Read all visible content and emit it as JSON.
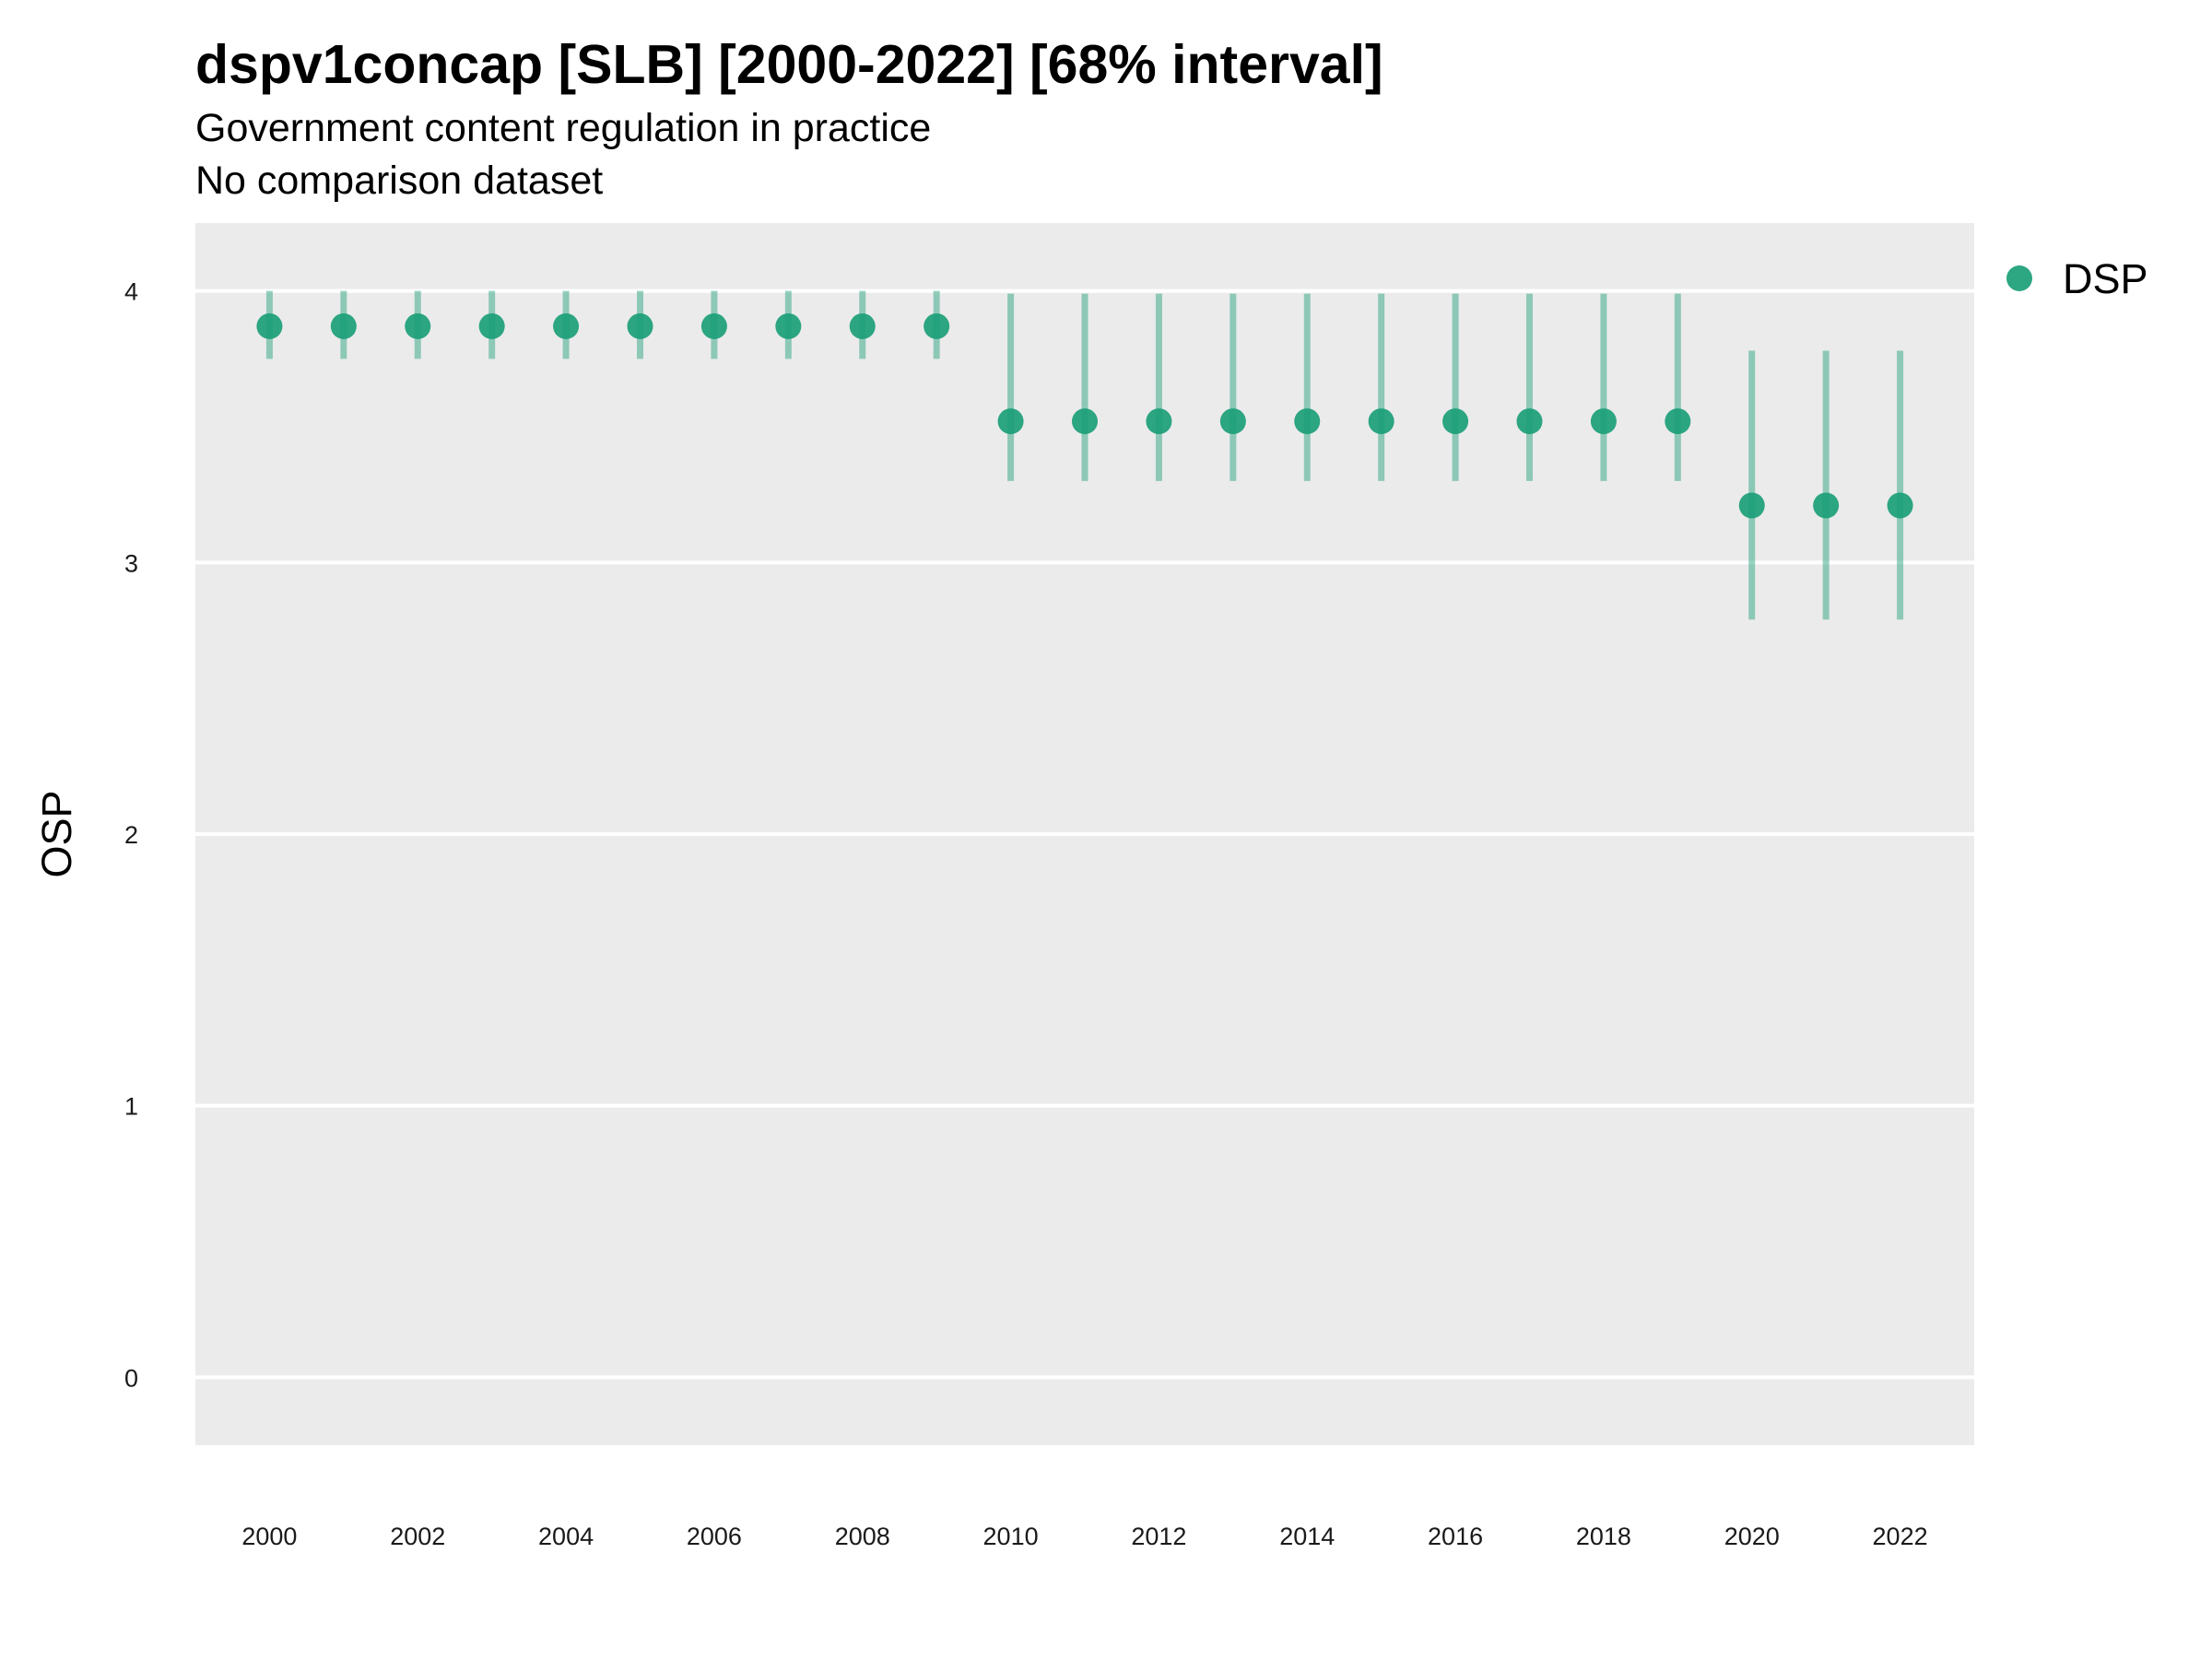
{
  "chart_data": {
    "type": "scatter",
    "title": "dspv1concap [SLB] [2000-2022] [68% interval]",
    "subtitle_lines": [
      "Government content regulation in practice",
      "No comparison dataset"
    ],
    "xlabel": "",
    "ylabel": "OSP",
    "xlim": [
      1999,
      2023
    ],
    "ylim": [
      -0.25,
      4.25
    ],
    "x_ticks": [
      2000,
      2002,
      2004,
      2006,
      2008,
      2010,
      2012,
      2014,
      2016,
      2018,
      2020,
      2022
    ],
    "y_ticks": [
      0,
      1,
      2,
      3,
      4
    ],
    "grid": true,
    "legend_position": "right",
    "colors": {
      "panel_background": "#ebebeb",
      "grid": "#ffffff",
      "point": "#1b9e77",
      "interval": "#1b9e77"
    },
    "series": [
      {
        "name": "DSP",
        "x": [
          2000,
          2001,
          2002,
          2003,
          2004,
          2005,
          2006,
          2007,
          2008,
          2009,
          2010,
          2011,
          2012,
          2013,
          2014,
          2015,
          2016,
          2017,
          2018,
          2019,
          2020,
          2021,
          2022
        ],
        "y": [
          3.87,
          3.87,
          3.87,
          3.87,
          3.87,
          3.87,
          3.87,
          3.87,
          3.87,
          3.87,
          3.52,
          3.52,
          3.52,
          3.52,
          3.52,
          3.52,
          3.52,
          3.52,
          3.52,
          3.52,
          3.21,
          3.21,
          3.21
        ],
        "lower": [
          3.75,
          3.75,
          3.75,
          3.75,
          3.75,
          3.75,
          3.75,
          3.75,
          3.75,
          3.75,
          3.3,
          3.3,
          3.3,
          3.3,
          3.3,
          3.3,
          3.3,
          3.3,
          3.3,
          3.3,
          2.79,
          2.79,
          2.79
        ],
        "upper": [
          4.0,
          4.0,
          4.0,
          4.0,
          4.0,
          4.0,
          4.0,
          4.0,
          4.0,
          4.0,
          3.99,
          3.99,
          3.99,
          3.99,
          3.99,
          3.99,
          3.99,
          3.99,
          3.99,
          3.99,
          3.78,
          3.78,
          3.78
        ]
      }
    ]
  }
}
